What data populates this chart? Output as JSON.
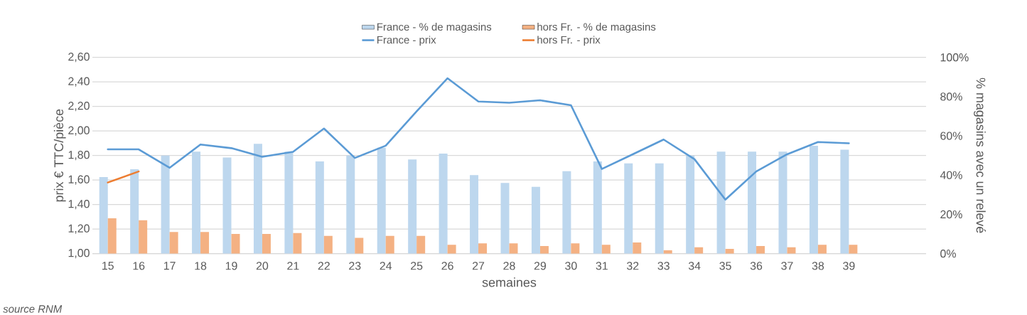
{
  "chart_data": {
    "type": "bar",
    "xlabel": "semaines",
    "ylabel": "prix € TTC/pièce",
    "y2label": "% magasins avec un relevé",
    "annotations": [
      "source RNM"
    ],
    "categories": [
      "15",
      "16",
      "17",
      "18",
      "19",
      "20",
      "21",
      "22",
      "23",
      "24",
      "25",
      "26",
      "27",
      "28",
      "29",
      "30",
      "31",
      "32",
      "33",
      "34",
      "35",
      "36",
      "37",
      "38",
      "39",
      null,
      null
    ],
    "series": [
      {
        "name": "France - % de magasins",
        "axis": "y2",
        "color": "#bdd7ee",
        "values": [
          39,
          43,
          50,
          52,
          49,
          56,
          52,
          47,
          50,
          54,
          48,
          51,
          40,
          36,
          34,
          42,
          47,
          46,
          46,
          50,
          52,
          52,
          52,
          55,
          53,
          null,
          null
        ]
      },
      {
        "name": "hors Fr.  - % de magasins",
        "axis": "y2",
        "color": "#f4b183",
        "values": [
          18,
          17,
          11,
          11,
          10,
          10,
          10.5,
          9,
          8,
          9,
          9,
          4.5,
          5.2,
          5.2,
          3.9,
          5.2,
          4.5,
          5.7,
          1.7,
          3.2,
          2.4,
          3.9,
          3.2,
          4.5,
          4.5,
          null,
          null
        ]
      },
      {
        "name": "France - prix",
        "type": "line",
        "color": "#5b9bd5",
        "values": [
          1.85,
          1.85,
          1.7,
          1.89,
          1.86,
          1.79,
          1.83,
          2.02,
          1.78,
          1.88,
          2.16,
          2.43,
          2.24,
          2.23,
          2.25,
          2.21,
          1.69,
          1.81,
          1.93,
          1.77,
          1.44,
          1.67,
          1.81,
          1.91,
          1.9,
          null,
          null
        ]
      },
      {
        "name": "hors Fr.  - prix",
        "type": "line",
        "color": "#ed7d31",
        "values": [
          1.58,
          1.67,
          null,
          null,
          null,
          null,
          null,
          null,
          null,
          null,
          null,
          null,
          null,
          null,
          null,
          null,
          null,
          null,
          null,
          null,
          null,
          null,
          null,
          null,
          null,
          null,
          null
        ]
      }
    ],
    "ylim": [
      1.0,
      2.6
    ],
    "yticks": [
      {
        "value": 1.0,
        "label": "1,00"
      },
      {
        "value": 1.2,
        "label": "1,20"
      },
      {
        "value": 1.4,
        "label": "1,40"
      },
      {
        "value": 1.6,
        "label": "1,60"
      },
      {
        "value": 1.8,
        "label": "1,80"
      },
      {
        "value": 2.0,
        "label": "2,00"
      },
      {
        "value": 2.2,
        "label": "2,20"
      },
      {
        "value": 2.4,
        "label": "2,40"
      },
      {
        "value": 2.6,
        "label": "2,60"
      }
    ],
    "y2lim": [
      0,
      100
    ],
    "y2ticks": [
      {
        "value": 0,
        "label": "0%"
      },
      {
        "value": 20,
        "label": "20%"
      },
      {
        "value": 40,
        "label": "40%"
      },
      {
        "value": 60,
        "label": "60%"
      },
      {
        "value": 80,
        "label": "80%"
      },
      {
        "value": 100,
        "label": "100%"
      }
    ],
    "grid": "y",
    "legend": "top"
  }
}
